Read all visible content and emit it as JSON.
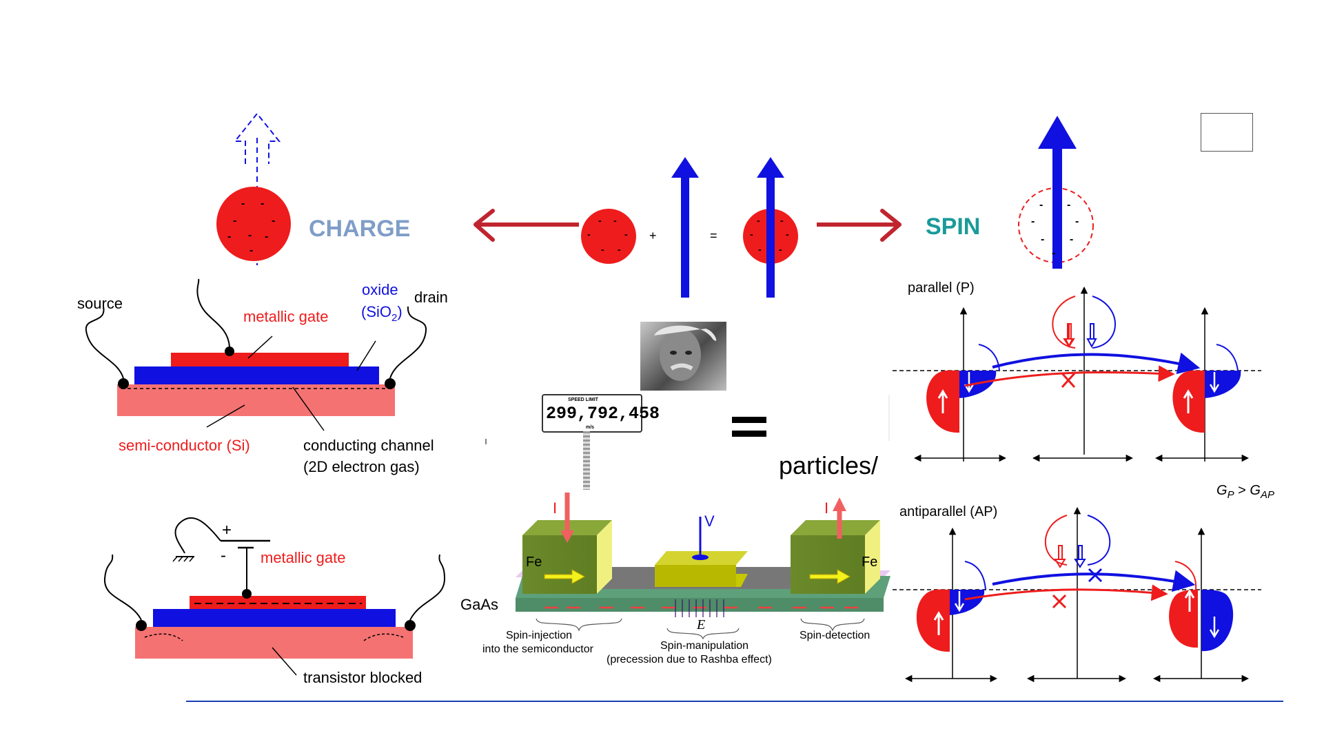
{
  "charge_spin": {
    "charge_label": "CHARGE",
    "spin_label": "SPIN",
    "plus": "+",
    "equals": "=",
    "electron_minus": "-"
  },
  "transistor_on": {
    "source": "source",
    "drain": "drain",
    "gate": "metallic gate",
    "oxide_line1": "oxide",
    "oxide_line2_prefix": "(SiO",
    "oxide_sub": "2",
    "oxide_line2_suffix": ")",
    "semiconductor": "semi-conductor (Si)",
    "channel_line1": "conducting channel",
    "channel_line2": "(2D electron gas)"
  },
  "transistor_off": {
    "plus": "+",
    "minus": "-",
    "gate": "metallic gate",
    "blocked": "transistor blocked"
  },
  "center": {
    "speed_sign_top": "SPEED LIMIT",
    "speed_sign_value": "299,792,458",
    "speed_sign_unit": "m/s",
    "equals": "=",
    "particles_text": "particles/"
  },
  "spin_fet": {
    "current_in": "I",
    "current_out": "I",
    "voltage": "V",
    "fe_left": "Fe",
    "fe_right": "Fe",
    "substrate": "GaAs",
    "field": "E",
    "injection_line1": "Spin-injection",
    "injection_line2": "into the semiconductor",
    "manipulation_line1": "Spin-manipulation",
    "manipulation_line2": "(precession due to Rashba effect)",
    "detection": "Spin-detection"
  },
  "gmr": {
    "parallel": "parallel (P)",
    "antiparallel": "antiparallel (AP)",
    "relation_g": "G",
    "relation_p": "P",
    "relation_gt": " > ",
    "relation_ap": "AP"
  },
  "colors": {
    "red": "#ee1c1c",
    "blue": "#1010e0",
    "pink": "#f47272",
    "charge_text": "#7f9dc8",
    "spin_text": "#1a9a9a",
    "dark_red_arrow": "#c0252f",
    "olive": "#6b8a2a",
    "yellow": "#f2f21c",
    "substrate_green": "#5da07a"
  }
}
